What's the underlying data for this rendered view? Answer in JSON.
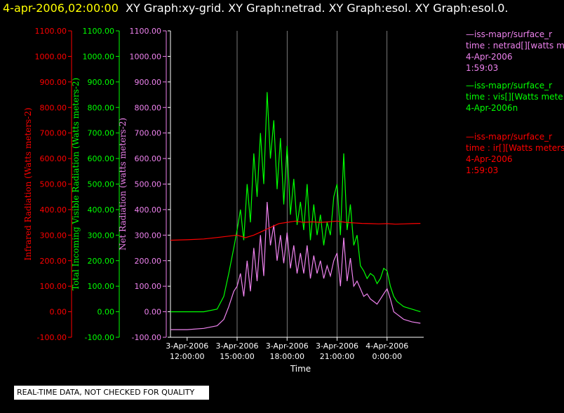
{
  "title": {
    "datetime": "4-apr-2006,02:00:00",
    "graphs": "XY Graph:xy-grid.  XY Graph:netrad.  XY Graph:esol.  XY Graph:esol.0."
  },
  "colors": {
    "netrad": "#ee82ee",
    "vis": "#00ff00",
    "ir": "#ff0000",
    "grid": "#ffffff"
  },
  "legend": [
    {
      "line1": "—iss-mapr/surface_r",
      "line2": "time : netrad[][watts me",
      "line3": "4-Apr-2006",
      "line4": "1:59:03",
      "color": "#ee82ee"
    },
    {
      "line1": "—iss-mapr/surface_r",
      "line2": "time : vis[][Watts mete",
      "line3": "4-Apr-2006n",
      "line4": "",
      "color": "#00ff00"
    },
    {
      "line1": "—iss-mapr/surface_r",
      "line2": "time : ir[][Watts meters",
      "line3": "4-Apr-2006",
      "line4": "1:59:03",
      "color": "#ff0000"
    }
  ],
  "status": "REAL-TIME DATA, NOT CHECKED FOR QUALITY",
  "chart_data": {
    "type": "line",
    "xlabel": "Time",
    "x_ticks": [
      {
        "date": "3-Apr-2006",
        "time": "12:00:00",
        "hours": 12
      },
      {
        "date": "3-Apr-2006",
        "time": "15:00:00",
        "hours": 15
      },
      {
        "date": "3-Apr-2006",
        "time": "18:00:00",
        "hours": 18
      },
      {
        "date": "3-Apr-2006",
        "time": "21:00:00",
        "hours": 21
      },
      {
        "date": "4-Apr-2006",
        "time": "0:00:00",
        "hours": 24
      }
    ],
    "xlim_hours": [
      11,
      26.2
    ],
    "ylim": [
      -100,
      1100
    ],
    "y_ticks": [
      "1100.00",
      "1000.00",
      "900.00",
      "800.00",
      "700.00",
      "600.00",
      "500.00",
      "400.00",
      "300.00",
      "200.00",
      "100.00",
      "0.00",
      "-100.00"
    ],
    "axes": [
      {
        "label": "Infrared Radiation (Watts meters-2)",
        "color": "#ff0000"
      },
      {
        "label": "Total Incoming Visible Radiation (Watts meters-2)",
        "color": "#00ff00"
      },
      {
        "label": "Net Radiation (watts meters-2)",
        "color": "#ee82ee"
      }
    ],
    "series": [
      {
        "name": "vis",
        "color": "#00ff00",
        "x_hours": [
          11,
          12,
          13,
          13.8,
          14.2,
          14.5,
          14.8,
          15.0,
          15.2,
          15.4,
          15.6,
          15.8,
          16.0,
          16.2,
          16.4,
          16.6,
          16.8,
          17.0,
          17.2,
          17.4,
          17.6,
          17.8,
          18.0,
          18.2,
          18.4,
          18.6,
          18.8,
          19.0,
          19.2,
          19.4,
          19.6,
          19.8,
          20.0,
          20.2,
          20.4,
          20.6,
          20.8,
          21.0,
          21.2,
          21.4,
          21.6,
          21.8,
          22.0,
          22.2,
          22.4,
          22.6,
          22.8,
          23.0,
          23.2,
          23.4,
          23.6,
          23.8,
          24.0,
          24.2,
          24.4,
          24.6,
          24.8,
          25.0,
          25.5,
          26.0
        ],
        "values": [
          0,
          0,
          0,
          10,
          60,
          150,
          250,
          320,
          400,
          280,
          500,
          350,
          620,
          450,
          700,
          500,
          860,
          600,
          750,
          480,
          680,
          420,
          650,
          380,
          520,
          340,
          430,
          320,
          500,
          280,
          420,
          300,
          380,
          260,
          350,
          300,
          450,
          500,
          300,
          620,
          320,
          420,
          260,
          300,
          180,
          160,
          130,
          150,
          140,
          110,
          130,
          170,
          160,
          100,
          60,
          40,
          30,
          20,
          10,
          0
        ]
      },
      {
        "name": "netrad",
        "color": "#ee82ee",
        "x_hours": [
          11,
          12,
          13,
          13.8,
          14.2,
          14.5,
          14.8,
          15.0,
          15.2,
          15.4,
          15.6,
          15.8,
          16.0,
          16.2,
          16.4,
          16.6,
          16.8,
          17.0,
          17.2,
          17.4,
          17.6,
          17.8,
          18.0,
          18.2,
          18.4,
          18.6,
          18.8,
          19.0,
          19.2,
          19.4,
          19.6,
          19.8,
          20.0,
          20.2,
          20.4,
          20.6,
          20.8,
          21.0,
          21.2,
          21.4,
          21.6,
          21.8,
          22.0,
          22.2,
          22.4,
          22.6,
          22.8,
          23.0,
          23.2,
          23.4,
          23.6,
          23.8,
          24.0,
          24.2,
          24.4,
          24.6,
          24.8,
          25.0,
          25.5,
          26.0
        ],
        "values": [
          -70,
          -70,
          -65,
          -55,
          -30,
          20,
          80,
          100,
          150,
          60,
          200,
          80,
          250,
          120,
          300,
          140,
          430,
          260,
          340,
          200,
          300,
          190,
          310,
          170,
          260,
          150,
          230,
          150,
          260,
          130,
          220,
          150,
          200,
          130,
          180,
          140,
          200,
          230,
          100,
          290,
          120,
          210,
          100,
          120,
          90,
          60,
          70,
          50,
          40,
          30,
          50,
          70,
          90,
          50,
          0,
          -10,
          -20,
          -30,
          -40,
          -45
        ]
      },
      {
        "name": "ir",
        "color": "#ff0000",
        "x_hours": [
          11,
          12,
          13,
          14,
          15,
          15.5,
          16,
          16.5,
          17,
          17.5,
          18,
          18.5,
          19,
          19.5,
          20,
          20.5,
          21,
          21.5,
          22,
          22.5,
          23,
          23.5,
          24,
          24.5,
          25,
          25.5,
          26
        ],
        "values": [
          280,
          282,
          285,
          292,
          300,
          290,
          300,
          315,
          330,
          345,
          350,
          355,
          350,
          352,
          350,
          352,
          355,
          350,
          348,
          346,
          345,
          344,
          345,
          343,
          344,
          345,
          346
        ]
      }
    ]
  }
}
